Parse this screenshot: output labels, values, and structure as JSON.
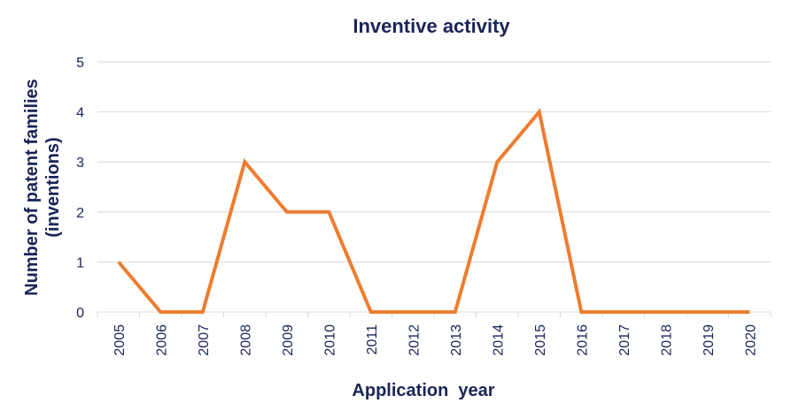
{
  "chart_data": {
    "type": "line",
    "title": "Inventive activity",
    "xlabel": "Application  year",
    "ylabel_lines": [
      "Number of patent families",
      "(inventions)"
    ],
    "categories": [
      "2005",
      "2006",
      "2007",
      "2008",
      "2009",
      "2010",
      "2011",
      "2012",
      "2013",
      "2014",
      "2015",
      "2016",
      "2017",
      "2018",
      "2019",
      "2020"
    ],
    "series": [
      {
        "values": [
          1,
          0,
          0,
          3,
          2,
          2,
          0,
          0,
          0,
          3,
          4,
          0,
          0,
          0,
          0,
          0
        ],
        "color": "#ed7d31"
      }
    ],
    "ylim": [
      0,
      5
    ],
    "yticks": [
      0,
      1,
      2,
      3,
      4,
      5
    ],
    "grid": true,
    "legend": "none"
  }
}
